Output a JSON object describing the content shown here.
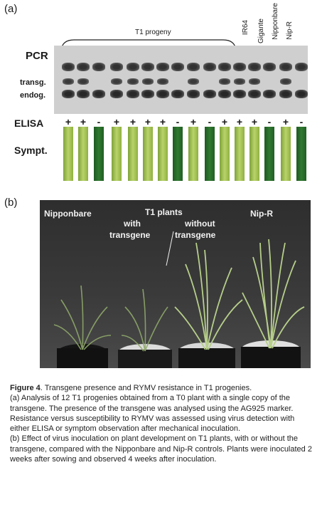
{
  "panel_a": {
    "label": "(a)",
    "progeny_label": "T1 progeny",
    "row_labels": {
      "pcr": "PCR",
      "transg": "transg.",
      "endog": "endog.",
      "elisa": "ELISA",
      "sympt": "Sympt."
    },
    "controls": [
      "IR64",
      "Gigante",
      "Nipponbare",
      "Nip-R"
    ],
    "elisa_results": [
      "+",
      "+",
      "-",
      "+",
      "+",
      "+",
      "+",
      "-",
      "+",
      "-",
      "+",
      "+",
      "+",
      "-",
      "+",
      "-"
    ]
  },
  "panel_b": {
    "label": "(b)",
    "photo_labels": {
      "nipponbare": "Nipponbare",
      "t1_plants": "T1 plants",
      "with": "with",
      "transgene_1": "transgene",
      "without": "without",
      "transgene_2": "transgene",
      "nipr": "Nip-R"
    }
  },
  "caption": {
    "figure_label": "Figure 4",
    "title": ". Transgene presence and RYMV resistance in T1 progenies.",
    "part_a": "(a) Analysis of 12 T1 progenies obtained from a T0 plant with a single copy of the transgene. The presence of the transgene was analysed using the AG925 marker. Resistance versus susceptibility to RYMV was assessed using virus detection with either ELISA or symptom observation after mechanical inoculation.",
    "part_b": "(b) Effect of virus inoculation on plant development on T1 plants, with or without the transgene, compared with the Nipponbare and Nip-R controls. Plants were inoculated 2 weeks after sowing and observed 4 weeks after inoculation."
  }
}
